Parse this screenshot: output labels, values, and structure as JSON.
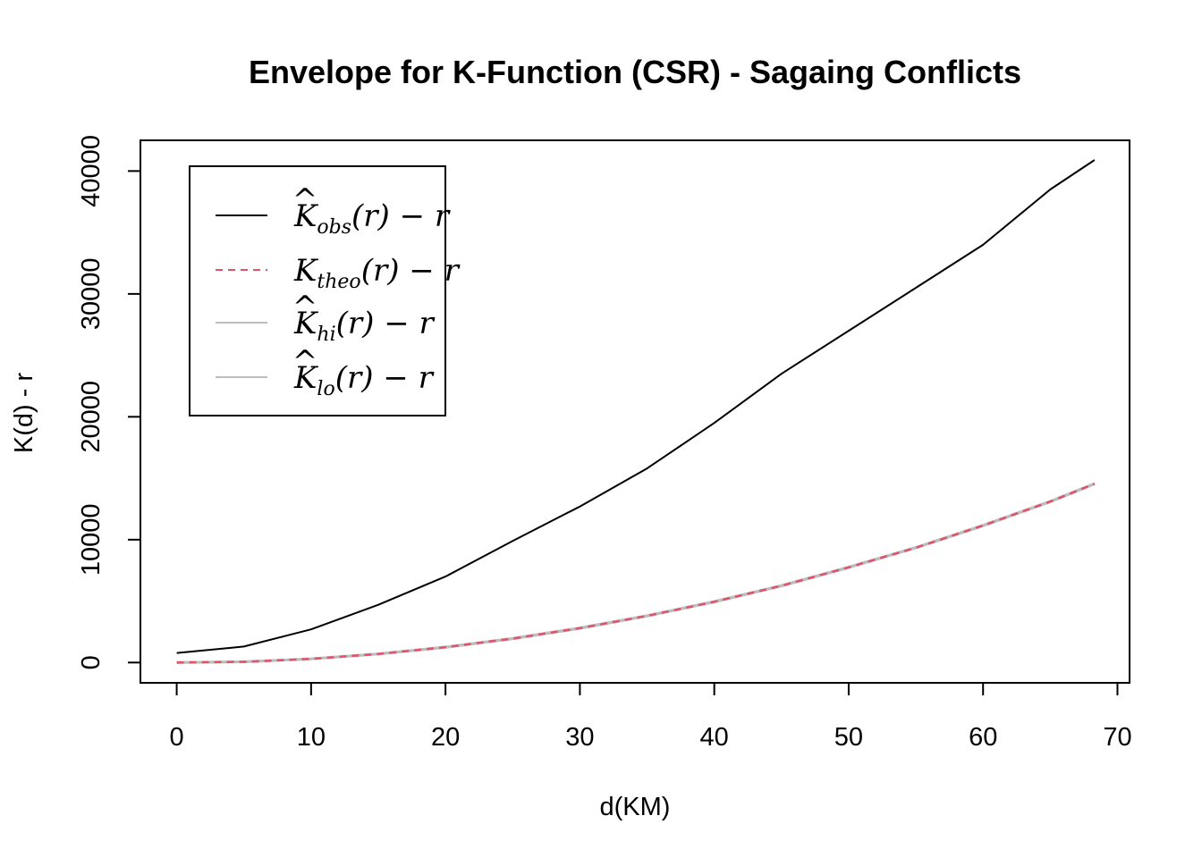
{
  "chart_data": {
    "type": "line",
    "title": "Envelope for K-Function (CSR) - Sagaing Conflicts",
    "xlabel": "d(KM)",
    "ylabel": "K(d) - r",
    "xlim": [
      -2.7,
      70.9
    ],
    "ylim": [
      -1650,
      42500
    ],
    "x_ticks": [
      0,
      10,
      20,
      30,
      40,
      50,
      60,
      70
    ],
    "x_tick_labels": [
      "0",
      "10",
      "20",
      "30",
      "40",
      "50",
      "60",
      "70"
    ],
    "y_ticks": [
      0,
      10000,
      20000,
      30000,
      40000
    ],
    "y_tick_labels": [
      "0",
      "10000",
      "20000",
      "30000",
      "40000"
    ],
    "grid": false,
    "legend_position": "top-left",
    "series": [
      {
        "key": "obs",
        "legend": {
          "base": "K",
          "hat": true,
          "sub": "obs"
        },
        "color": "#000000",
        "dash": "solid",
        "x": [
          0,
          5,
          10,
          15,
          20,
          25,
          30,
          35,
          40,
          45,
          50,
          55,
          60,
          65,
          68.3
        ],
        "values": [
          780,
          1300,
          2700,
          4700,
          7000,
          9900,
          12700,
          15800,
          19500,
          23500,
          27000,
          30500,
          34000,
          38500,
          40900
        ]
      },
      {
        "key": "theo",
        "legend": {
          "base": "K",
          "hat": false,
          "sub": "theo"
        },
        "color": "#df536b",
        "dash": "dashed",
        "x": [
          0,
          5,
          10,
          15,
          20,
          25,
          30,
          35,
          40,
          45,
          50,
          55,
          60,
          65,
          68.3
        ],
        "values": [
          0,
          60,
          300,
          700,
          1250,
          1950,
          2800,
          3800,
          4950,
          6250,
          7750,
          9350,
          11150,
          13100,
          14550
        ]
      },
      {
        "key": "hi",
        "legend": {
          "base": "K",
          "hat": true,
          "sub": "hi"
        },
        "color": "#bebebe",
        "dash": "solid",
        "x": [
          0,
          5,
          10,
          15,
          20,
          25,
          30,
          35,
          40,
          45,
          50,
          55,
          60,
          65,
          68.3
        ],
        "values": [
          0,
          70,
          310,
          710,
          1270,
          1970,
          2820,
          3820,
          4970,
          6270,
          7770,
          9370,
          11170,
          13120,
          14570
        ]
      },
      {
        "key": "lo",
        "legend": {
          "base": "K",
          "hat": true,
          "sub": "lo"
        },
        "color": "#bebebe",
        "dash": "solid",
        "x": [
          0,
          5,
          10,
          15,
          20,
          25,
          30,
          35,
          40,
          45,
          50,
          55,
          60,
          65,
          68.3
        ],
        "values": [
          0,
          50,
          290,
          690,
          1230,
          1930,
          2780,
          3780,
          4930,
          6230,
          7730,
          9330,
          11130,
          13080,
          14530
        ]
      }
    ]
  }
}
